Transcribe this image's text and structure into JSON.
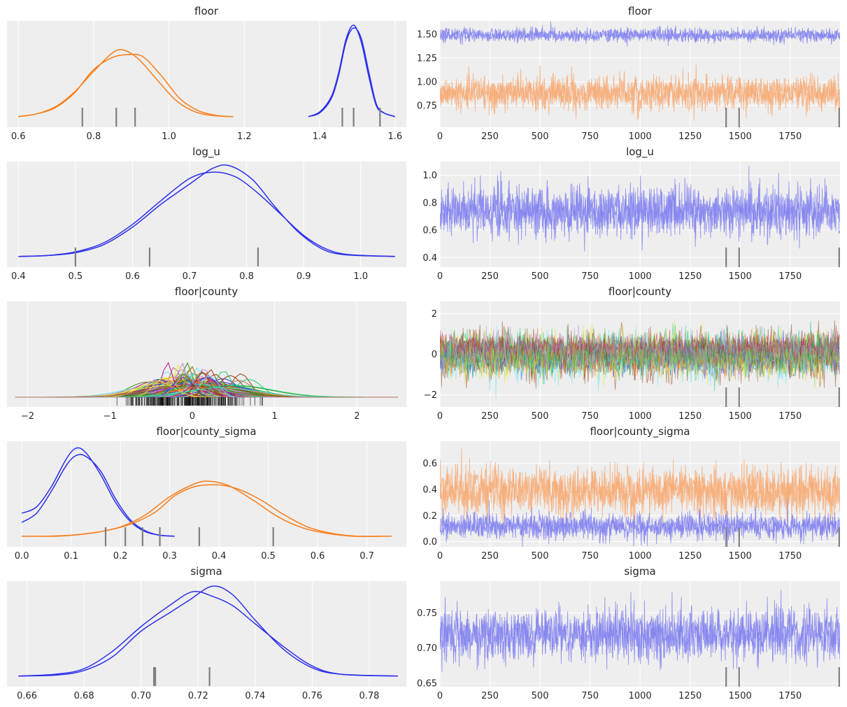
{
  "colors": {
    "panel_bg": "#eeeeee",
    "grid": "#ffffff",
    "text": "#262626",
    "rug": "#7f7f7f",
    "blue": "#2a2eec",
    "orange": "#fa7c17",
    "trace_blue": "#8080f0",
    "trace_orange": "#f8a970",
    "county_palette": [
      "#2a2eec",
      "#fa7c17",
      "#328c06",
      "#c10c90",
      "#933708",
      "#65e5f3",
      "#e6e135",
      "#1ccd6a",
      "#bd8ad5",
      "#b16b57"
    ]
  },
  "chart_data": [
    {
      "id": "floor_density",
      "type": "line",
      "title": "floor",
      "xlim": [
        0.57,
        1.63
      ],
      "xticks": [
        0.6,
        0.8,
        1.0,
        1.2,
        1.4,
        1.6
      ],
      "xtick_labels": [
        "0.6",
        "0.8",
        "1.0",
        "1.2",
        "1.4",
        "1.6"
      ],
      "series": [
        {
          "color": "orange",
          "x": [
            0.6,
            0.65,
            0.7,
            0.75,
            0.8,
            0.85,
            0.88,
            0.92,
            0.97,
            1.02,
            1.07,
            1.12,
            1.17
          ],
          "y": [
            0.01,
            0.04,
            0.12,
            0.28,
            0.5,
            0.7,
            0.73,
            0.63,
            0.4,
            0.18,
            0.06,
            0.02,
            0.01
          ]
        },
        {
          "color": "orange",
          "x": [
            0.6,
            0.65,
            0.7,
            0.75,
            0.8,
            0.85,
            0.89,
            0.93,
            0.98,
            1.03,
            1.08,
            1.13,
            1.17
          ],
          "y": [
            0.01,
            0.04,
            0.11,
            0.27,
            0.52,
            0.65,
            0.68,
            0.66,
            0.45,
            0.2,
            0.07,
            0.02,
            0.01
          ]
        },
        {
          "color": "blue",
          "x": [
            1.37,
            1.4,
            1.43,
            1.45,
            1.47,
            1.49,
            1.51,
            1.53,
            1.55,
            1.57,
            1.6
          ],
          "y": [
            0.01,
            0.06,
            0.22,
            0.48,
            0.85,
            1.0,
            0.82,
            0.45,
            0.13,
            0.05,
            0.01
          ]
        },
        {
          "color": "blue",
          "x": [
            1.37,
            1.4,
            1.43,
            1.45,
            1.47,
            1.49,
            1.51,
            1.53,
            1.55,
            1.57,
            1.6
          ],
          "y": [
            0.01,
            0.05,
            0.2,
            0.45,
            0.82,
            0.97,
            0.86,
            0.5,
            0.15,
            0.05,
            0.01
          ]
        }
      ],
      "rug": [
        0.77,
        0.86,
        0.91,
        1.46,
        1.49,
        1.56
      ]
    },
    {
      "id": "floor_trace",
      "type": "line",
      "title": "floor",
      "xlim": [
        0,
        1999
      ],
      "ylim": [
        0.52,
        1.64
      ],
      "xticks": [
        0,
        250,
        500,
        750,
        1000,
        1250,
        1500,
        1750
      ],
      "xtick_labels": [
        "0",
        "250",
        "500",
        "750",
        "1000",
        "1250",
        "1500",
        "1750"
      ],
      "yticks": [
        0.75,
        1.0,
        1.25,
        1.5
      ],
      "ytick_labels": [
        "0.75",
        "1.00",
        "1.25",
        "1.50"
      ],
      "traces": [
        {
          "color": "trace_blue",
          "mean": 1.49,
          "sd": 0.035
        },
        {
          "color": "trace_blue",
          "mean": 1.49,
          "sd": 0.035
        },
        {
          "color": "trace_orange",
          "mean": 0.88,
          "sd": 0.085
        },
        {
          "color": "trace_orange",
          "mean": 0.88,
          "sd": 0.085
        }
      ],
      "rug": [
        1430,
        1495,
        1995
      ]
    },
    {
      "id": "log_u_density",
      "type": "line",
      "title": "log_u",
      "xlim": [
        0.38,
        1.08
      ],
      "xticks": [
        0.4,
        0.5,
        0.6,
        0.7,
        0.8,
        0.9,
        1.0
      ],
      "xtick_labels": [
        "0.4",
        "0.5",
        "0.6",
        "0.7",
        "0.8",
        "0.9",
        "1.0"
      ],
      "series": [
        {
          "color": "blue",
          "x": [
            0.4,
            0.45,
            0.5,
            0.55,
            0.6,
            0.65,
            0.7,
            0.74,
            0.78,
            0.82,
            0.86,
            0.9,
            0.94,
            0.98,
            1.06
          ],
          "y": [
            0.01,
            0.02,
            0.06,
            0.16,
            0.36,
            0.62,
            0.86,
            0.93,
            0.88,
            0.7,
            0.47,
            0.24,
            0.09,
            0.03,
            0.01
          ]
        },
        {
          "color": "blue",
          "x": [
            0.4,
            0.45,
            0.5,
            0.55,
            0.6,
            0.65,
            0.7,
            0.74,
            0.77,
            0.81,
            0.85,
            0.89,
            0.93,
            0.97,
            1.06
          ],
          "y": [
            0.01,
            0.02,
            0.05,
            0.14,
            0.33,
            0.58,
            0.8,
            0.97,
            1.0,
            0.85,
            0.55,
            0.28,
            0.1,
            0.03,
            0.01
          ]
        }
      ],
      "rug": [
        0.5,
        0.63,
        0.82
      ]
    },
    {
      "id": "log_u_trace",
      "type": "line",
      "title": "log_u",
      "xlim": [
        0,
        1999
      ],
      "ylim": [
        0.33,
        1.1
      ],
      "xticks": [
        0,
        250,
        500,
        750,
        1000,
        1250,
        1500,
        1750
      ],
      "xtick_labels": [
        "0",
        "250",
        "500",
        "750",
        "1000",
        "1250",
        "1500",
        "1750"
      ],
      "yticks": [
        0.4,
        0.6,
        0.8,
        1.0
      ],
      "ytick_labels": [
        "0.4",
        "0.6",
        "0.8",
        "1.0"
      ],
      "traces": [
        {
          "color": "trace_blue",
          "mean": 0.73,
          "sd": 0.09
        },
        {
          "color": "trace_blue",
          "mean": 0.74,
          "sd": 0.09
        }
      ],
      "rug": [
        1430,
        1495,
        1995
      ]
    },
    {
      "id": "floor_county_density",
      "type": "line",
      "title": "floor|county",
      "xlim": [
        -2.25,
        2.6
      ],
      "xticks": [
        -2,
        -1,
        0,
        1,
        2
      ],
      "xtick_labels": [
        "−2",
        "−1",
        "0",
        "1",
        "2"
      ],
      "curves": {
        "count": 170,
        "seed": 7,
        "x_min": -2.15,
        "x_max": 2.5
      },
      "rug_range": [
        -0.95,
        0.85
      ],
      "rug_count": 240
    },
    {
      "id": "floor_county_trace",
      "type": "line",
      "title": "floor|county",
      "xlim": [
        0,
        1999
      ],
      "ylim": [
        -2.6,
        2.6
      ],
      "xticks": [
        0,
        250,
        500,
        750,
        1000,
        1250,
        1500,
        1750
      ],
      "xtick_labels": [
        "0",
        "250",
        "500",
        "750",
        "1000",
        "1250",
        "1500",
        "1750"
      ],
      "yticks": [
        -2,
        0,
        2
      ],
      "ytick_labels": [
        "−2",
        "0",
        "2"
      ],
      "band": {
        "mean": 0.0,
        "sd": 0.38,
        "layers": 30
      },
      "rug": [
        1430,
        1495,
        1995
      ]
    },
    {
      "id": "floor_county_sigma_density",
      "type": "line",
      "title": "floor|county_sigma",
      "xlim": [
        -0.03,
        0.78
      ],
      "xticks": [
        0.0,
        0.1,
        0.2,
        0.3,
        0.4,
        0.5,
        0.6,
        0.7
      ],
      "xtick_labels": [
        "0.0",
        "0.1",
        "0.2",
        "0.3",
        "0.4",
        "0.5",
        "0.6",
        "0.7"
      ],
      "series": [
        {
          "color": "blue",
          "x": [
            0.0,
            0.03,
            0.06,
            0.09,
            0.11,
            0.13,
            0.16,
            0.19,
            0.22,
            0.25,
            0.28,
            0.31
          ],
          "y": [
            0.26,
            0.33,
            0.55,
            0.85,
            0.97,
            0.92,
            0.68,
            0.38,
            0.17,
            0.06,
            0.02,
            0.01
          ]
        },
        {
          "color": "blue",
          "x": [
            0.0,
            0.03,
            0.06,
            0.09,
            0.11,
            0.13,
            0.16,
            0.19,
            0.22,
            0.25,
            0.28,
            0.31
          ],
          "y": [
            0.16,
            0.26,
            0.5,
            0.78,
            0.89,
            0.88,
            0.72,
            0.42,
            0.19,
            0.07,
            0.02,
            0.01
          ]
        },
        {
          "color": "orange",
          "x": [
            0.0,
            0.05,
            0.1,
            0.15,
            0.2,
            0.25,
            0.3,
            0.35,
            0.38,
            0.42,
            0.47,
            0.52,
            0.57,
            0.62,
            0.67,
            0.75
          ],
          "y": [
            0.01,
            0.01,
            0.02,
            0.05,
            0.11,
            0.24,
            0.44,
            0.58,
            0.61,
            0.56,
            0.4,
            0.22,
            0.1,
            0.04,
            0.01,
            0.01
          ]
        },
        {
          "color": "orange",
          "x": [
            0.02,
            0.07,
            0.12,
            0.17,
            0.22,
            0.27,
            0.31,
            0.35,
            0.39,
            0.43,
            0.48,
            0.53,
            0.58,
            0.63,
            0.68,
            0.75
          ],
          "y": [
            0.01,
            0.01,
            0.03,
            0.07,
            0.14,
            0.27,
            0.45,
            0.55,
            0.57,
            0.54,
            0.42,
            0.25,
            0.11,
            0.04,
            0.01,
            0.01
          ]
        }
      ],
      "rug": [
        0.17,
        0.21,
        0.245,
        0.28,
        0.36,
        0.51
      ]
    },
    {
      "id": "floor_county_sigma_trace",
      "type": "line",
      "title": "floor|county_sigma",
      "xlim": [
        0,
        1999
      ],
      "ylim": [
        -0.04,
        0.77
      ],
      "xticks": [
        0,
        250,
        500,
        750,
        1000,
        1250,
        1500,
        1750
      ],
      "xtick_labels": [
        "0",
        "250",
        "500",
        "750",
        "1000",
        "1250",
        "1500",
        "1750"
      ],
      "yticks": [
        0.0,
        0.2,
        0.4,
        0.6
      ],
      "ytick_labels": [
        "0.0",
        "0.2",
        "0.4",
        "0.6"
      ],
      "traces": [
        {
          "color": "trace_orange",
          "mean": 0.39,
          "sd": 0.09
        },
        {
          "color": "trace_orange",
          "mean": 0.39,
          "sd": 0.09
        },
        {
          "color": "trace_blue",
          "mean": 0.12,
          "sd": 0.05
        },
        {
          "color": "trace_blue",
          "mean": 0.12,
          "sd": 0.05
        }
      ],
      "rug": [
        1430,
        1495,
        1995
      ]
    },
    {
      "id": "sigma_density",
      "type": "line",
      "title": "sigma",
      "xlim": [
        0.653,
        0.793
      ],
      "xticks": [
        0.66,
        0.68,
        0.7,
        0.72,
        0.74,
        0.76,
        0.78
      ],
      "xtick_labels": [
        "0.66",
        "0.68",
        "0.70",
        "0.72",
        "0.74",
        "0.76",
        "0.78"
      ],
      "series": [
        {
          "color": "blue",
          "x": [
            0.657,
            0.67,
            0.68,
            0.69,
            0.7,
            0.71,
            0.718,
            0.725,
            0.732,
            0.74,
            0.75,
            0.76,
            0.77,
            0.79
          ],
          "y": [
            0.01,
            0.03,
            0.09,
            0.28,
            0.55,
            0.78,
            0.93,
            0.88,
            0.78,
            0.58,
            0.33,
            0.12,
            0.03,
            0.01
          ]
        },
        {
          "color": "blue",
          "x": [
            0.657,
            0.67,
            0.68,
            0.69,
            0.7,
            0.71,
            0.717,
            0.725,
            0.732,
            0.74,
            0.75,
            0.76,
            0.77,
            0.79
          ],
          "y": [
            0.01,
            0.02,
            0.07,
            0.22,
            0.5,
            0.7,
            0.84,
            0.99,
            0.9,
            0.62,
            0.3,
            0.1,
            0.03,
            0.01
          ]
        }
      ],
      "rug": [
        0.7045,
        0.705,
        0.724
      ]
    },
    {
      "id": "sigma_trace",
      "type": "line",
      "title": "sigma",
      "xlim": [
        0,
        1999
      ],
      "ylim": [
        0.645,
        0.795
      ],
      "xticks": [
        0,
        250,
        500,
        750,
        1000,
        1250,
        1500,
        1750
      ],
      "xtick_labels": [
        "0",
        "250",
        "500",
        "750",
        "1000",
        "1250",
        "1500",
        "1750"
      ],
      "yticks": [
        0.65,
        0.7,
        0.75
      ],
      "ytick_labels": [
        "0.65",
        "0.70",
        "0.75"
      ],
      "traces": [
        {
          "color": "trace_blue",
          "mean": 0.719,
          "sd": 0.018
        },
        {
          "color": "trace_blue",
          "mean": 0.719,
          "sd": 0.018
        }
      ],
      "rug": [
        1430,
        1495,
        1995
      ]
    }
  ]
}
